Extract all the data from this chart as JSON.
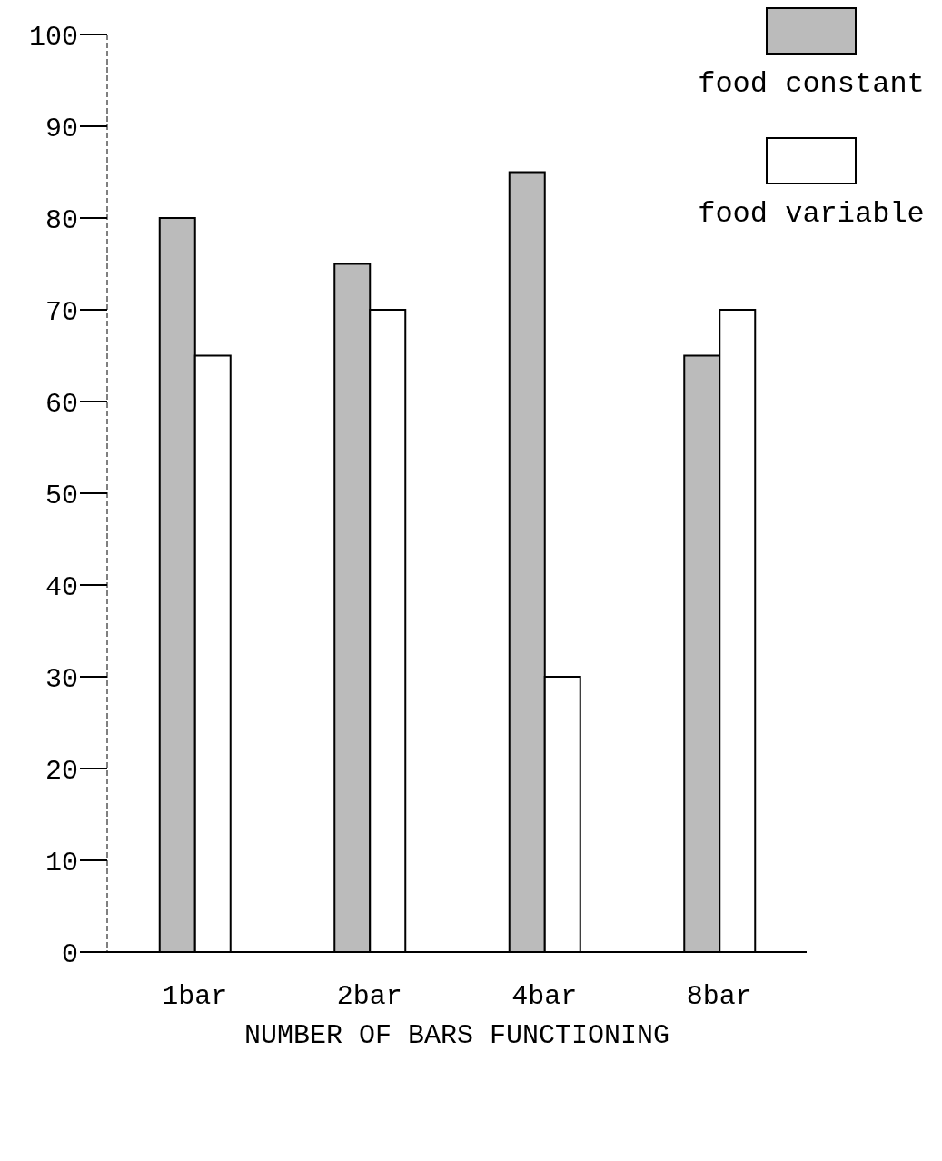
{
  "chart_data": {
    "type": "bar",
    "xlabel": "NUMBER OF BARS FUNCTIONING",
    "categories": [
      "1bar",
      "2bar",
      "4bar",
      "8bar"
    ],
    "series": [
      {
        "name": "food constant",
        "color": "#bbbbbb",
        "values": [
          80,
          75,
          85,
          65
        ]
      },
      {
        "name": "food variable",
        "color": "#ffffff",
        "values": [
          65,
          70,
          30,
          70
        ]
      }
    ],
    "ylim": [
      0,
      100
    ],
    "yticks": [
      0,
      10,
      20,
      30,
      40,
      50,
      60,
      70,
      80,
      90,
      100
    ],
    "grid": false,
    "legend": "top right"
  }
}
